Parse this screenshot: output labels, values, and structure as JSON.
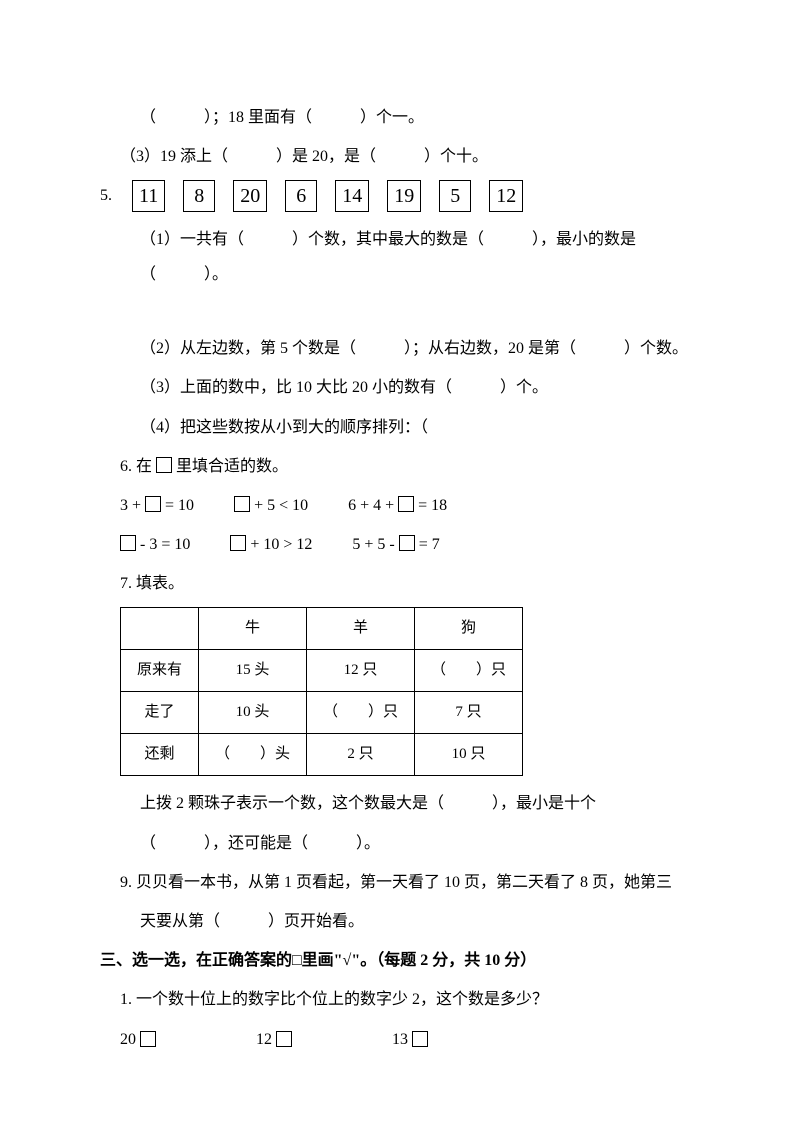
{
  "page": {
    "line1": "（　　　）；18 里面有（　　　）个一。",
    "line2": "（3）19 添上（　　　）是 20，是（　　　）个十。",
    "q5_label": "5.",
    "q5_numbers": [
      "11",
      "8",
      "20",
      "6",
      "14",
      "19",
      "5",
      "12"
    ],
    "q5_1": "（1）一共有（　　　）个数，其中最大的数是（　　　），最小的数是（　　　）。",
    "q5_2": "（2）从左边数，第 5 个数是（　　　）；从右边数，20 是第（　　　）个数。",
    "q5_3": "（3）上面的数中，比 10 大比 20 小的数有（　　　）个。",
    "q5_4": "（4）把这些数按从小到大的顺序排列：（",
    "q6_title": "6. 在",
    "q6_title2": "里填合适的数。",
    "eq1": "3 +",
    "eq1b": "= 10",
    "eq2a": "+ 5 < 10",
    "eq3": "6 + 4 +",
    "eq3b": "= 18",
    "eq4a": "- 3 = 10",
    "eq5a": "+ 10 > 12",
    "eq6": "5 + 5 -",
    "eq6b": "= 7",
    "q7_title": "7. 填表。",
    "table": {
      "headers": [
        "",
        "牛",
        "羊",
        "狗"
      ],
      "rows": [
        [
          "原来有",
          "15 头",
          "12 只",
          "（　　）只"
        ],
        [
          "走了",
          "10 头",
          "（　　）只",
          "7 只"
        ],
        [
          "还剩",
          "（　　）头",
          "2 只",
          "10 只"
        ]
      ]
    },
    "q8_line1": "上拨 2 颗珠子表示一个数，这个数最大是（　　　），最小是十个",
    "q8_line2": "（　　　），还可能是（　　　）。",
    "q9_line1": "9. 贝贝看一本书，从第 1 页看起，第一天看了 10 页，第二天看了 8 页，她第三",
    "q9_line2": "天要从第（　　　）页开始看。",
    "section3_title": "三、选一选，在正确答案的□里画\"√\"。（每题 2 分，共 10 分）",
    "s3_q1": "1. 一个数十位上的数字比个位上的数字少 2，这个数是多少？",
    "choices": [
      "20",
      "12",
      "13"
    ]
  },
  "style": {
    "background_color": "#ffffff",
    "text_color": "#000000",
    "font_size": 16,
    "box_border": "#000000"
  }
}
